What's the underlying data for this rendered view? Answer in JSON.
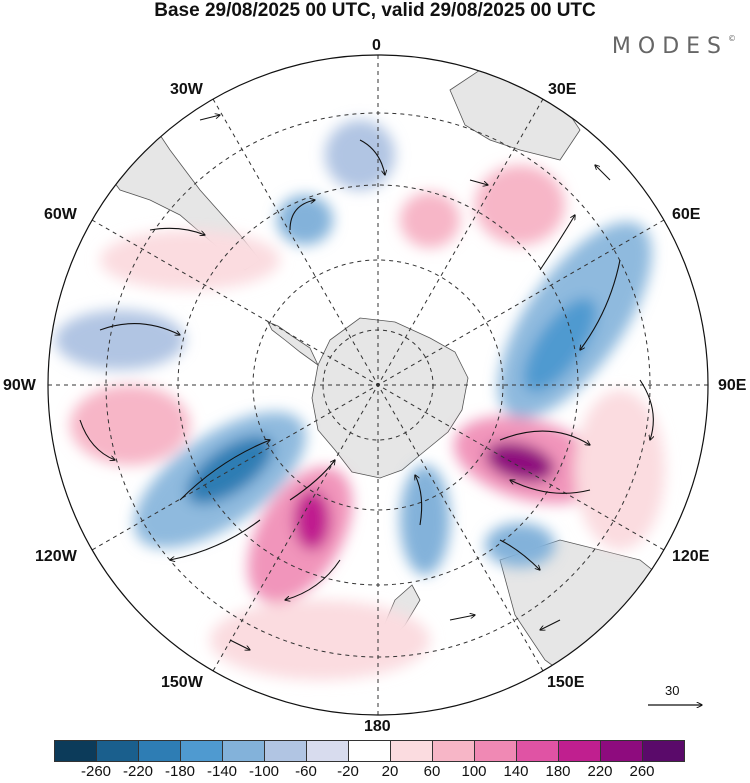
{
  "title": "Base 29/08/2025 00 UTC, valid 29/08/2025 00 UTC",
  "brand": "MODES",
  "brand_mark": "©",
  "longitude_labels": {
    "l0": "0",
    "l30e": "30E",
    "l60e": "60E",
    "l90e": "90E",
    "l120e": "120E",
    "l150e": "150E",
    "l180": "180",
    "l150w": "150W",
    "l120w": "120W",
    "l90w": "90W",
    "l60w": "60W",
    "l30w": "30W"
  },
  "colorbar": {
    "colors": [
      "#0c3b5a",
      "#1a5f8d",
      "#2e7db4",
      "#4f9ad0",
      "#83b2da",
      "#b1c5e3",
      "#d8dcee",
      "#ffffff",
      "#fbdce0",
      "#f7b6c7",
      "#f089b4",
      "#e053a4",
      "#c01f8f",
      "#8e0b7e",
      "#5a0a6a"
    ],
    "ticks": [
      "-260",
      "-220",
      "-180",
      "-140",
      "-100",
      "-60",
      "-20",
      "20",
      "60",
      "100",
      "140",
      "180",
      "220",
      "260"
    ]
  },
  "wind_reference": "30"
}
